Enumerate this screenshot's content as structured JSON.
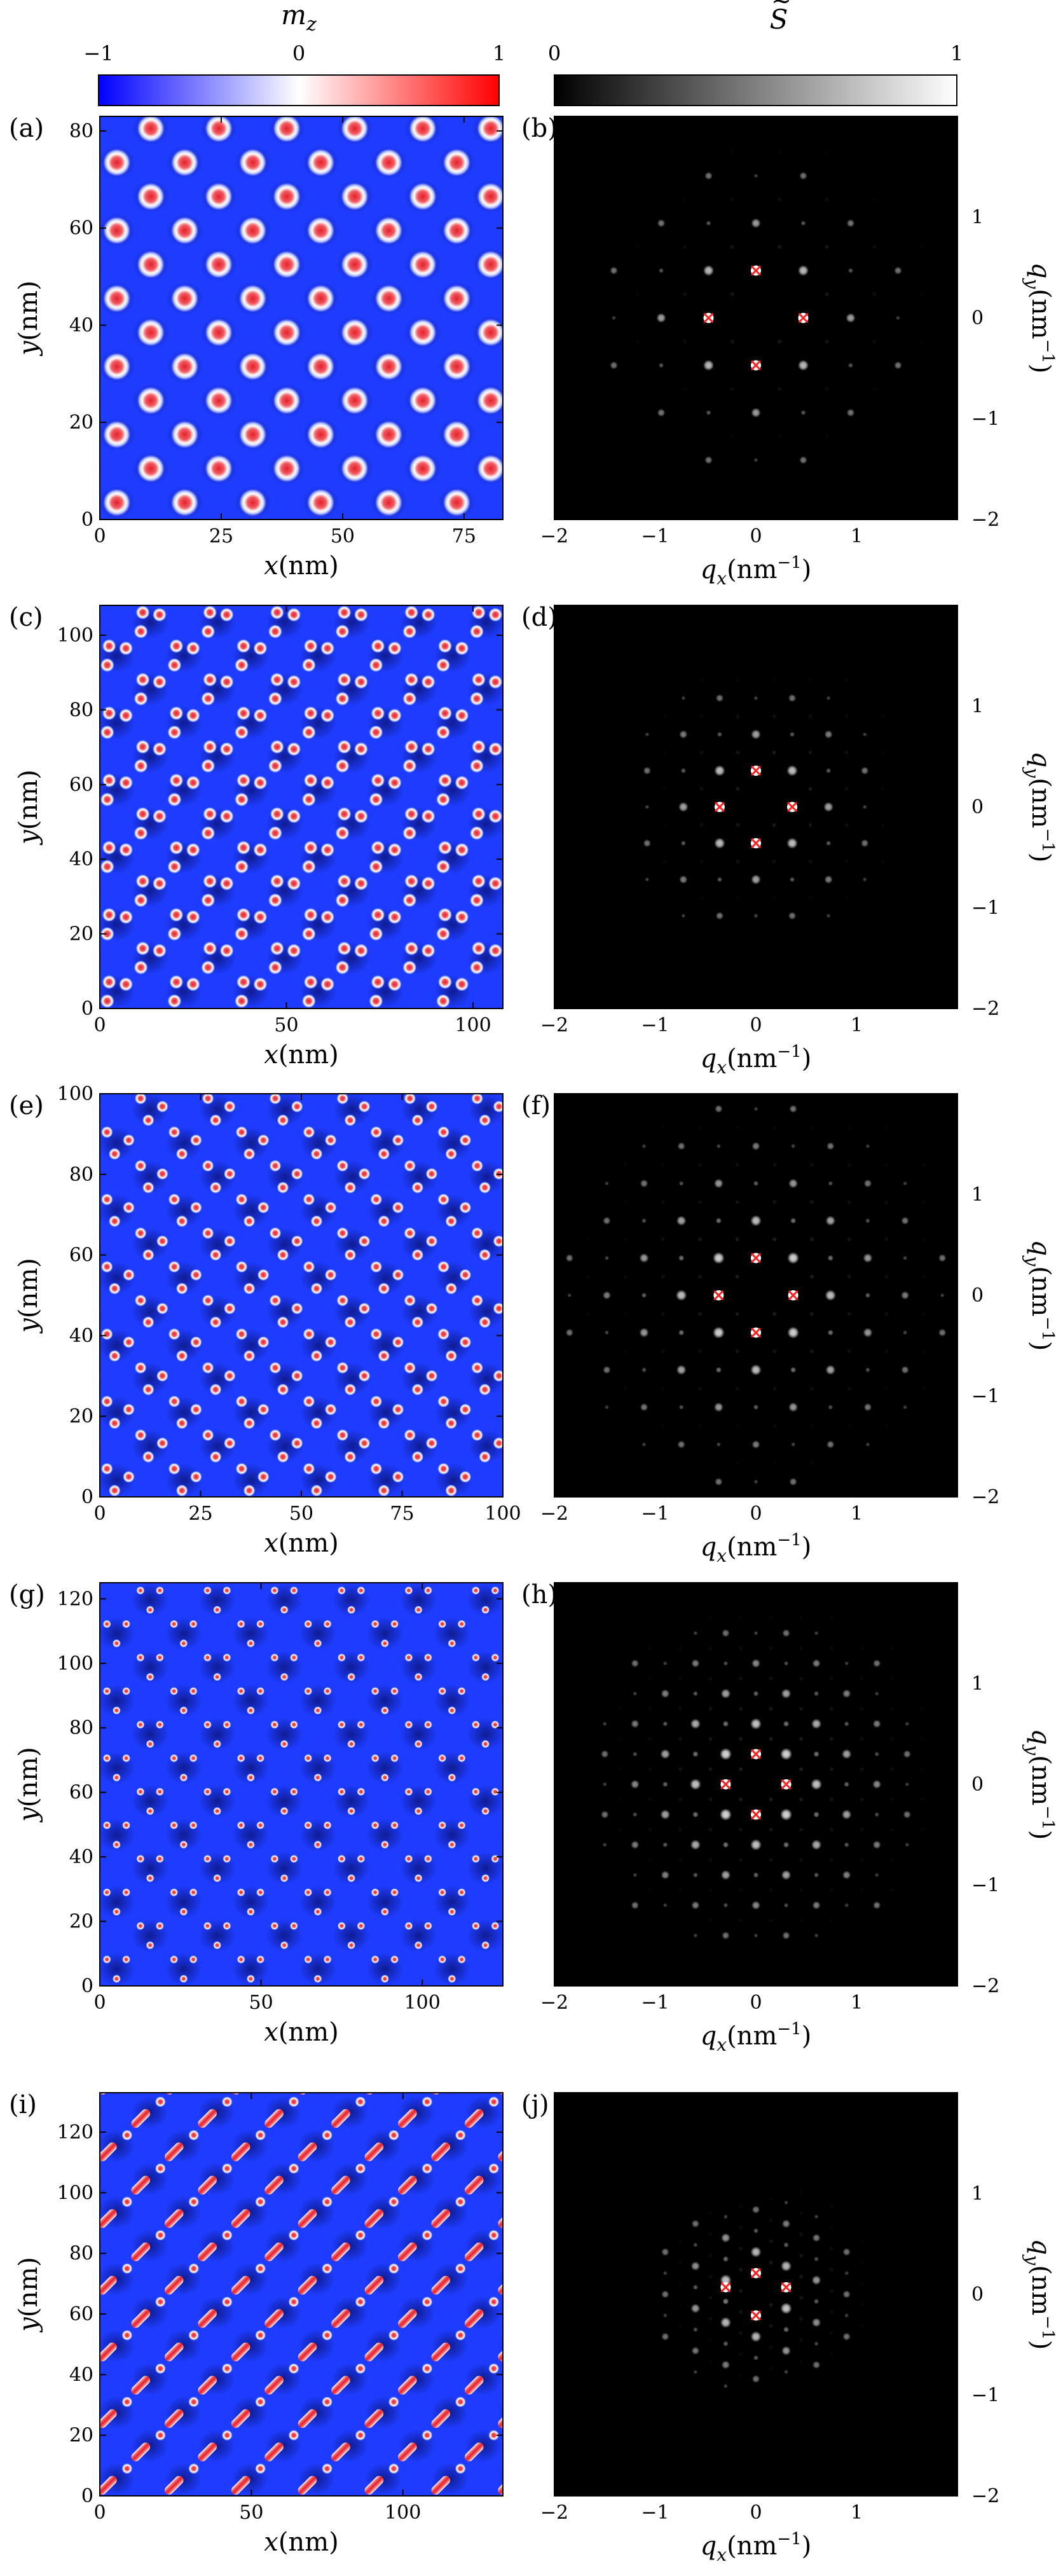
{
  "colorbars": {
    "mz": {
      "title": "m",
      "title_sub": "z",
      "min_label": "−1",
      "mid_label": "0",
      "max_label": "1",
      "colors": {
        "low": "#0000ff",
        "mid": "#ffffff",
        "high": "#ff0000"
      }
    },
    "S": {
      "title": "S",
      "title_accent": "~",
      "min_label": "0",
      "max_label": "1",
      "colors": {
        "low": "#000000",
        "high": "#ffffff"
      }
    }
  },
  "axis_text": {
    "x_real": "x",
    "y_real": "y",
    "unit_nm": "(nm)",
    "qx": "q",
    "qx_sub": "x",
    "qy": "q",
    "qy_sub": "y",
    "unit_inv": "(nm",
    "unit_inv_sup": "−1",
    "unit_close": ")"
  },
  "colors": {
    "skyrmion_core": "#e4202a",
    "background_blue": "#1e3cff",
    "dark_blue": "#0a1270",
    "qmark": "#ff2020",
    "peak": "#ffffff",
    "fourier_bg": "#000000"
  },
  "chart_data": [
    {
      "type": "heatmap",
      "panel_label": "(a)",
      "quantity": "m_z",
      "xlim": [
        0,
        83
      ],
      "ylim": [
        0,
        83
      ],
      "x_ticks": [
        0,
        25,
        50,
        75
      ],
      "y_ticks": [
        0,
        20,
        40,
        60,
        80
      ],
      "x_tick_labels": [
        "0",
        "25",
        "50",
        "75"
      ],
      "y_tick_labels": [
        "0",
        "20",
        "40",
        "60",
        "80"
      ],
      "pattern": "triangular skyrmion lattice",
      "lattice": {
        "a": 14,
        "b": 7,
        "cols": 6,
        "rows": 12
      },
      "motif": [
        [
          0,
          0,
          "dot"
        ]
      ],
      "core_size": 2.9
    },
    {
      "type": "heatmap",
      "panel_label": "(b)",
      "quantity": "S",
      "xlim": [
        -2,
        2
      ],
      "ylim": [
        -2,
        2
      ],
      "x_ticks": [
        -2,
        -1,
        0,
        1
      ],
      "y_ticks": [
        -2,
        -1,
        0,
        1
      ],
      "x_tick_labels": [
        "−2",
        "−1",
        "0",
        "1"
      ],
      "y_tick_labels": [
        "−2",
        "−1",
        "0",
        "1"
      ],
      "q_markers": [
        [
          0,
          0.47
        ],
        [
          -0.47,
          0
        ],
        [
          0.47,
          0
        ],
        [
          0,
          -0.47
        ]
      ],
      "max_q": 1.6
    },
    {
      "type": "heatmap",
      "panel_label": "(c)",
      "quantity": "m_z",
      "xlim": [
        0,
        108
      ],
      "ylim": [
        0,
        108
      ],
      "x_ticks": [
        0,
        50,
        100
      ],
      "y_ticks": [
        0,
        20,
        40,
        60,
        80,
        100
      ],
      "x_tick_labels": [
        "0",
        "50",
        "100"
      ],
      "y_tick_labels": [
        "0",
        "20",
        "40",
        "60",
        "80",
        "100"
      ],
      "pattern": "skyrmion clusters",
      "lattice": {
        "a": 18,
        "b": 9,
        "cols": 6,
        "rows": 12
      },
      "motif": [
        [
          -2.5,
          -2.5,
          "dot"
        ],
        [
          2.5,
          2.0,
          "dot"
        ],
        [
          -2.0,
          2.6,
          "dot"
        ]
      ],
      "core_size": 1.9
    },
    {
      "type": "heatmap",
      "panel_label": "(d)",
      "quantity": "S",
      "xlim": [
        -2,
        2
      ],
      "ylim": [
        -2,
        2
      ],
      "x_ticks": [
        -2,
        -1,
        0,
        1
      ],
      "y_ticks": [
        -2,
        -1,
        0,
        1
      ],
      "x_tick_labels": [
        "−2",
        "−1",
        "0",
        "1"
      ],
      "y_tick_labels": [
        "−2",
        "−1",
        "0",
        "1"
      ],
      "q_markers": [
        [
          0,
          0.36
        ],
        [
          -0.36,
          0
        ],
        [
          0.36,
          0
        ],
        [
          0,
          -0.36
        ]
      ],
      "max_q": 1.3
    },
    {
      "type": "heatmap",
      "panel_label": "(e)",
      "quantity": "m_z",
      "xlim": [
        0,
        100
      ],
      "ylim": [
        0,
        100
      ],
      "x_ticks": [
        0,
        25,
        50,
        75,
        100
      ],
      "y_ticks": [
        0,
        20,
        40,
        60,
        80,
        100
      ],
      "x_tick_labels": [
        "0",
        "25",
        "50",
        "75",
        "100"
      ],
      "y_tick_labels": [
        "0",
        "20",
        "40",
        "60",
        "80",
        "100"
      ],
      "pattern": "skyrmion clusters",
      "lattice": {
        "a": 16.7,
        "b": 8.35,
        "cols": 6,
        "rows": 12
      },
      "motif": [
        [
          -2.4,
          2.8,
          "dot"
        ],
        [
          3.0,
          0.8,
          "dot"
        ],
        [
          -0.5,
          -2.6,
          "dot"
        ]
      ],
      "core_size": 1.5
    },
    {
      "type": "heatmap",
      "panel_label": "(f)",
      "quantity": "S",
      "xlim": [
        -2,
        2
      ],
      "ylim": [
        -2,
        2
      ],
      "x_ticks": [
        -2,
        -1,
        0,
        1
      ],
      "y_ticks": [
        -2,
        -1,
        0,
        1
      ],
      "x_tick_labels": [
        "−2",
        "−1",
        "0",
        "1"
      ],
      "y_tick_labels": [
        "−2",
        "−1",
        "0",
        "1"
      ],
      "q_markers": [
        [
          0,
          0.37
        ],
        [
          -0.37,
          0
        ],
        [
          0.37,
          0
        ],
        [
          0,
          -0.37
        ]
      ],
      "max_q": 1.9
    },
    {
      "type": "heatmap",
      "panel_label": "(g)",
      "quantity": "m_z",
      "xlim": [
        0,
        125
      ],
      "ylim": [
        0,
        125
      ],
      "x_ticks": [
        0,
        50,
        100
      ],
      "y_ticks": [
        0,
        20,
        40,
        60,
        80,
        100,
        120
      ],
      "x_tick_labels": [
        "0",
        "50",
        "100"
      ],
      "y_tick_labels": [
        "0",
        "20",
        "40",
        "60",
        "80",
        "100",
        "120"
      ],
      "pattern": "skyrmion clusters",
      "lattice": {
        "a": 20.8,
        "b": 10.4,
        "cols": 6,
        "rows": 12
      },
      "motif": [
        [
          -3,
          3,
          "dot"
        ],
        [
          3,
          3,
          "dot"
        ],
        [
          0,
          -3,
          "dot"
        ]
      ],
      "core_size": 1.3
    },
    {
      "type": "heatmap",
      "panel_label": "(h)",
      "quantity": "S",
      "xlim": [
        -2,
        2
      ],
      "ylim": [
        -2,
        2
      ],
      "x_ticks": [
        -2,
        -1,
        0,
        1
      ],
      "y_ticks": [
        -2,
        -1,
        0,
        1
      ],
      "x_tick_labels": [
        "−2",
        "−1",
        "0",
        "1"
      ],
      "y_tick_labels": [
        "−2",
        "−1",
        "0",
        "1"
      ],
      "q_markers": [
        [
          0,
          0.3
        ],
        [
          -0.3,
          0
        ],
        [
          0.3,
          0
        ],
        [
          0,
          -0.3
        ]
      ],
      "max_q": 1.7
    },
    {
      "type": "heatmap",
      "panel_label": "(i)",
      "quantity": "m_z",
      "xlim": [
        0,
        133
      ],
      "ylim": [
        0,
        133
      ],
      "x_ticks": [
        0,
        50,
        100
      ],
      "y_ticks": [
        0,
        20,
        40,
        60,
        80,
        100,
        120
      ],
      "x_tick_labels": [
        "0",
        "50",
        "100"
      ],
      "y_tick_labels": [
        "0",
        "20",
        "40",
        "60",
        "80",
        "100",
        "120"
      ],
      "pattern": "elongated skyrmions",
      "lattice": {
        "a": 22,
        "b": 11,
        "cols": 6,
        "rows": 12
      },
      "motif": [
        [
          -3,
          -2,
          "bar",
          45
        ],
        [
          3.5,
          3.5,
          "dot"
        ]
      ],
      "core_size": 1.8
    },
    {
      "type": "heatmap",
      "panel_label": "(j)",
      "quantity": "S",
      "xlim": [
        -2,
        2
      ],
      "ylim": [
        -2,
        2
      ],
      "x_ticks": [
        -2,
        -1,
        0,
        1
      ],
      "y_ticks": [
        -2,
        -1,
        0,
        1
      ],
      "x_tick_labels": [
        "−2",
        "−1",
        "0",
        "1"
      ],
      "y_tick_labels": [
        "−2",
        "−1",
        "0",
        "1"
      ],
      "q_markers": [
        [
          0,
          0.21
        ],
        [
          -0.3,
          0.07
        ],
        [
          0.3,
          0.07
        ],
        [
          0,
          -0.21
        ]
      ],
      "max_q": 1.0
    }
  ]
}
